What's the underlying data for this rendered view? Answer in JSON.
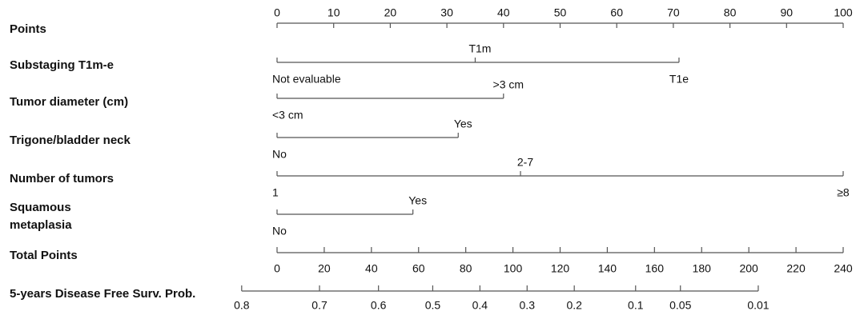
{
  "chart_data": {
    "type": "nomogram",
    "points_axis": {
      "name": "Points",
      "lim": [
        0,
        100
      ],
      "ticks": [
        0,
        10,
        20,
        30,
        40,
        50,
        60,
        70,
        80,
        90,
        100
      ]
    },
    "variables": [
      {
        "name": "Substaging T1m-e",
        "levels": [
          "Not evaluable",
          "T1m",
          "T1e"
        ],
        "points": [
          0,
          35,
          71
        ]
      },
      {
        "name": "Tumor diameter (cm)",
        "levels": [
          "<3 cm",
          ">3 cm"
        ],
        "points": [
          0,
          40
        ]
      },
      {
        "name": "Trigone/bladder neck",
        "levels": [
          "No",
          "Yes"
        ],
        "points": [
          0,
          32
        ]
      },
      {
        "name": "Number of tumors",
        "levels": [
          "1",
          "2-7",
          "≥8"
        ],
        "points": [
          0,
          43,
          100
        ]
      },
      {
        "name": "Squamous\nmetaplasia",
        "levels": [
          "No",
          "Yes"
        ],
        "points": [
          0,
          24
        ]
      }
    ],
    "total_points_axis": {
      "name": "Total Points",
      "lim": [
        0,
        240
      ],
      "ticks": [
        0,
        20,
        40,
        60,
        80,
        100,
        120,
        140,
        160,
        180,
        200,
        220,
        240
      ]
    },
    "probability_axis": {
      "name": "5-years Disease Free Surv. Prob.",
      "ticks": [
        0.8,
        0.7,
        0.6,
        0.5,
        0.4,
        0.3,
        0.2,
        0.1,
        0.05,
        0.01
      ],
      "tick_points": [
        -15,
        18,
        43,
        66,
        86,
        106,
        126,
        152,
        171,
        204
      ]
    }
  }
}
